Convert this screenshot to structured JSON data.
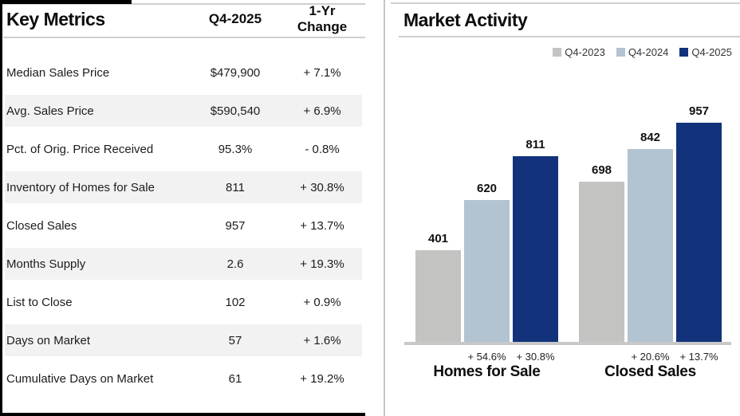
{
  "table": {
    "title": "Key Metrics",
    "columns": [
      "Q4-2025",
      "1-Yr Change"
    ],
    "rows": [
      {
        "metric": "Median Sales Price",
        "value": "$479,900",
        "change": "+ 7.1%"
      },
      {
        "metric": "Avg. Sales Price",
        "value": "$590,540",
        "change": "+ 6.9%"
      },
      {
        "metric": "Pct. of Orig. Price Received",
        "value": "95.3%",
        "change": "- 0.8%"
      },
      {
        "metric": "Inventory of Homes for Sale",
        "value": "811",
        "change": "+ 30.8%"
      },
      {
        "metric": "Closed Sales",
        "value": "957",
        "change": "+ 13.7%"
      },
      {
        "metric": "Months Supply",
        "value": "2.6",
        "change": "+ 19.3%"
      },
      {
        "metric": "List to Close",
        "value": "102",
        "change": "+ 0.9%"
      },
      {
        "metric": "Days on Market",
        "value": "57",
        "change": "+ 1.6%"
      },
      {
        "metric": "Cumulative Days on Market",
        "value": "61",
        "change": "+ 19.2%"
      }
    ]
  },
  "chart": {
    "title": "Market Activity",
    "legend": [
      {
        "label": "Q4-2023",
        "color": "#c3c3c1"
      },
      {
        "label": "Q4-2024",
        "color": "#b2c3d2"
      },
      {
        "label": "Q4-2025",
        "color": "#12337b"
      }
    ]
  },
  "chart_data": {
    "type": "bar",
    "title": "Market Activity",
    "categories": [
      "Homes for Sale",
      "Closed Sales"
    ],
    "series": [
      {
        "name": "Q4-2023",
        "color": "#c3c3c1",
        "values": [
          401,
          698
        ]
      },
      {
        "name": "Q4-2024",
        "color": "#b2c3d2",
        "values": [
          620,
          842
        ]
      },
      {
        "name": "Q4-2025",
        "color": "#12337b",
        "values": [
          811,
          957
        ]
      }
    ],
    "change_labels": [
      [
        "+ 54.6%",
        "+ 30.8%"
      ],
      [
        "+ 20.6%",
        "+ 13.7%"
      ]
    ],
    "value_labels": true,
    "grid": false,
    "legend_position": "top-right",
    "xlabel": "",
    "ylabel": "",
    "ylim": [
      0,
      1000
    ]
  },
  "colors": {
    "band": "#f2f2f2",
    "rule": "#cfcfcf",
    "baseline": "#c8c8c8",
    "border": "#000000"
  }
}
